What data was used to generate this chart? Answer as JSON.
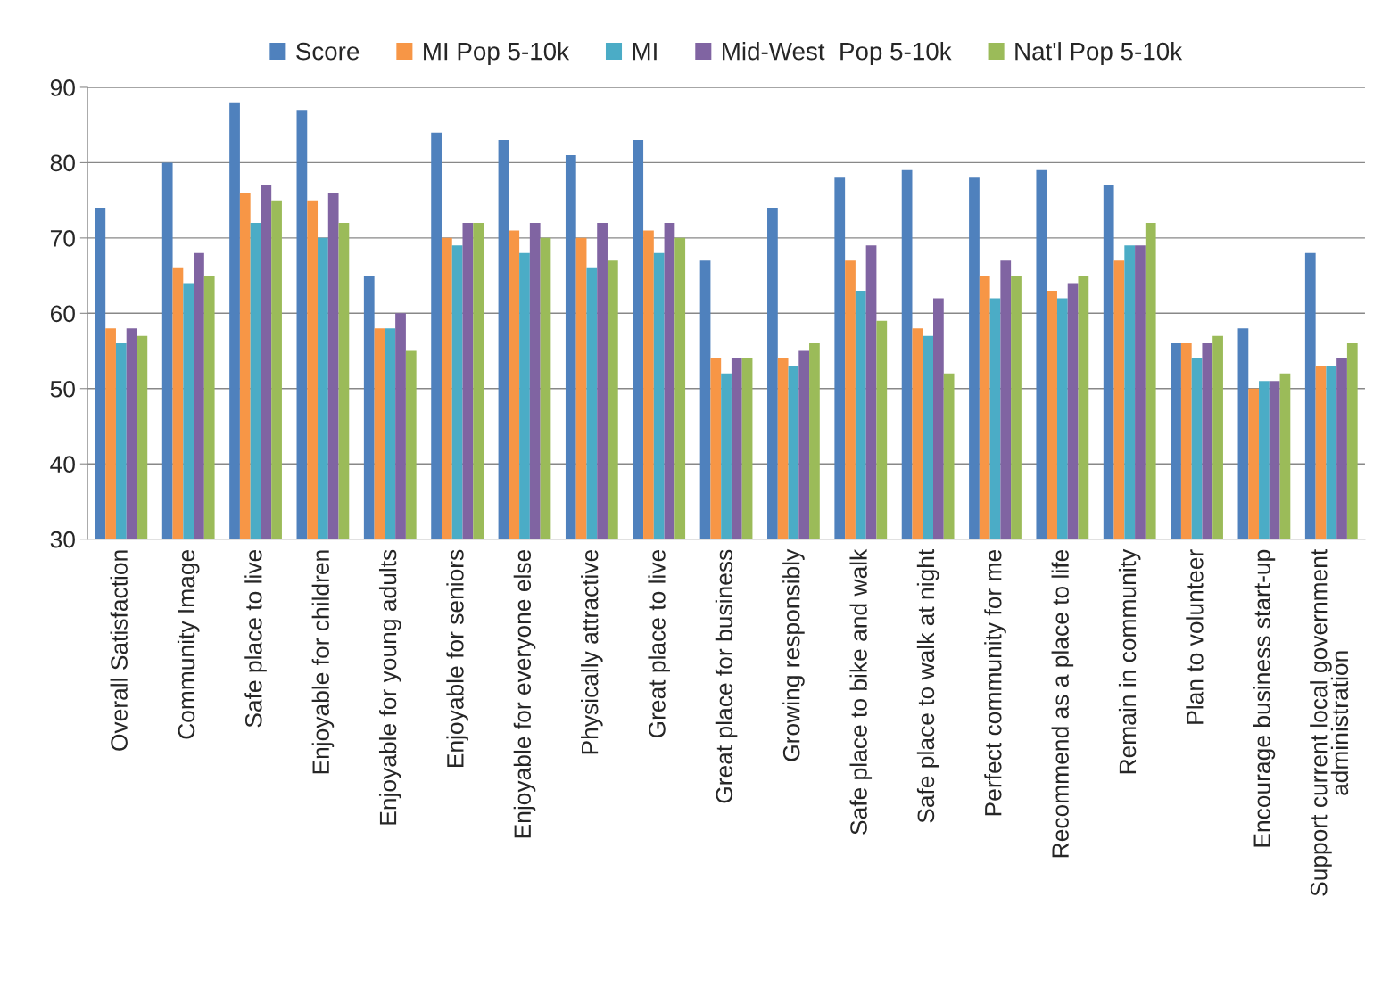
{
  "chart_data": {
    "type": "bar",
    "categories": [
      "Overall Satisfaction",
      "Community Image",
      "Safe place to live",
      "Enjoyable for children",
      "Enjoyable for young adults",
      "Enjoyable for seniors",
      "Enjoyable for everyone else",
      "Physically attractive",
      "Great place to live",
      "Great place for business",
      "Growing responsibly",
      "Safe place to bike and walk",
      "Safe place to walk at night",
      "Perfect community for me",
      "Recommend as a place to life",
      "Remain in community",
      "Plan to volunteer",
      "Encourage business start-up",
      "Support current local government\nadministration"
    ],
    "series": [
      {
        "name": "Score",
        "color": "#4f81bd",
        "values": [
          74,
          80,
          88,
          87,
          65,
          84,
          83,
          81,
          83,
          67,
          74,
          78,
          79,
          78,
          79,
          77,
          56,
          58,
          68
        ]
      },
      {
        "name": "MI Pop 5-10k",
        "color": "#f79646",
        "values": [
          58,
          66,
          76,
          75,
          58,
          70,
          71,
          70,
          71,
          54,
          54,
          67,
          58,
          65,
          63,
          67,
          56,
          50,
          53
        ]
      },
      {
        "name": "MI",
        "color": "#4bacc6",
        "values": [
          56,
          64,
          72,
          70,
          58,
          69,
          68,
          66,
          68,
          52,
          53,
          63,
          57,
          62,
          62,
          69,
          54,
          51,
          53
        ]
      },
      {
        "name": "Mid-West  Pop 5-10k",
        "color": "#8064a2",
        "values": [
          58,
          68,
          77,
          76,
          60,
          72,
          72,
          72,
          72,
          54,
          55,
          69,
          62,
          67,
          64,
          69,
          56,
          51,
          54
        ]
      },
      {
        "name": "Nat'l Pop 5-10k",
        "color": "#9bbb59",
        "values": [
          57,
          65,
          75,
          72,
          55,
          72,
          70,
          67,
          70,
          54,
          56,
          59,
          52,
          65,
          65,
          72,
          57,
          52,
          56
        ]
      }
    ],
    "ylim": [
      30,
      90
    ],
    "yticks": [
      30,
      40,
      50,
      60,
      70,
      80,
      90
    ],
    "grid": "y",
    "legend": "top"
  }
}
